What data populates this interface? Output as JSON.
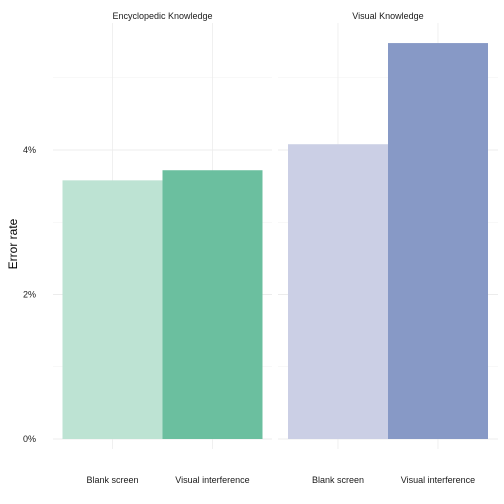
{
  "chart_data": {
    "type": "bar",
    "ylabel": "Error rate",
    "xlabel": "",
    "ylim": [
      0,
      5.4
    ],
    "y_ticks": [
      "0%",
      "2%",
      "4%"
    ],
    "y_tick_values": [
      0,
      2,
      4
    ],
    "categories": [
      "Blank screen",
      "Visual interference"
    ],
    "grid": true,
    "legend": "none",
    "facets": [
      {
        "title": "Encyclopedic Knowledge",
        "values": [
          3.58,
          3.72
        ],
        "colors": [
          "#bde3d3",
          "#6bbf9f"
        ]
      },
      {
        "title": "Visual Knowledge",
        "values": [
          4.08,
          5.48
        ],
        "colors": [
          "#cbcfe5",
          "#8799c6"
        ]
      }
    ]
  }
}
